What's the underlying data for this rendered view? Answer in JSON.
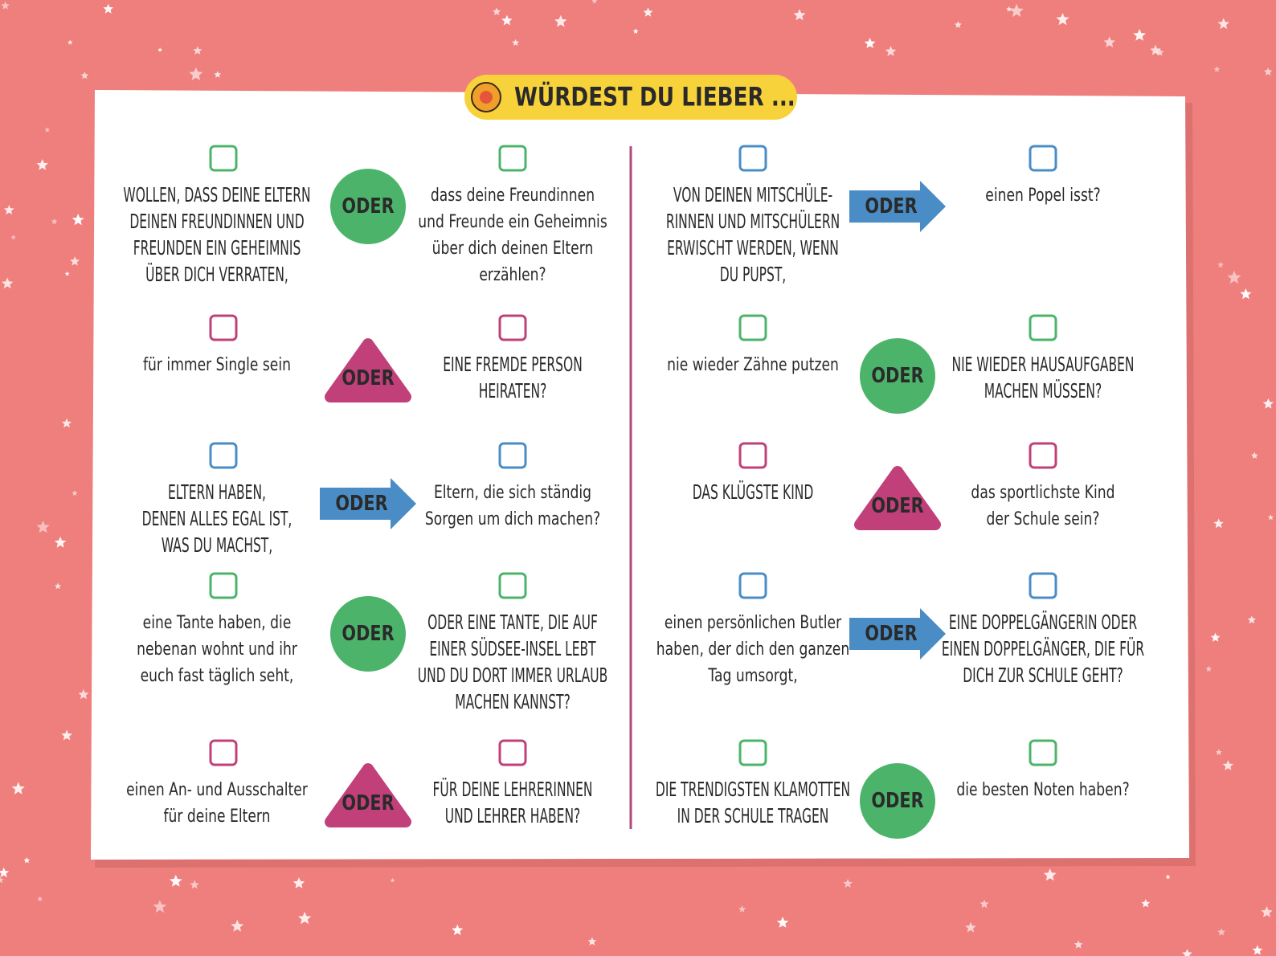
{
  "title": "WÜRDEST DU LIEBER ...",
  "columns": [
    {
      "rows": [
        {
          "left": [
            "WOLLEN, DASS DEINE ELTERN",
            "DEINEN FREUNDINNEN UND",
            "FREUNDEN EIN GEHEIMNIS",
            "ÜBER DICH VERRATEN,"
          ],
          "connector": {
            "label": "ODER",
            "shape": "circle"
          },
          "right": [
            "dass deine Freundinnen",
            "und Freunde ein Geheimnis",
            "über dich deinen Eltern",
            "erzählen?"
          ]
        },
        {
          "left": [
            "für immer Single sein"
          ],
          "connector": {
            "label": "ODER",
            "shape": "triangle"
          },
          "right": [
            "EINE FREMDE PERSON",
            "HEIRATEN?"
          ]
        },
        {
          "left": [
            "ELTERN HABEN,",
            "DENEN ALLES EGAL IST,",
            "WAS DU MACHST,"
          ],
          "connector": {
            "label": "ODER",
            "shape": "arrow"
          },
          "right": [
            "Eltern, die sich ständig",
            "Sorgen um dich machen?"
          ]
        },
        {
          "left": [
            "eine Tante haben, die",
            "nebenan wohnt und ihr",
            "euch fast täglich seht,"
          ],
          "connector": {
            "label": "ODER",
            "shape": "circle"
          },
          "right": [
            "ODER EINE TANTE, DIE AUF",
            "EINER SÜDSEE-INSEL LEBT",
            "UND DU DORT IMMER URLAUB",
            "MACHEN KANNST?"
          ]
        },
        {
          "left": [
            "einen An- und Ausschalter",
            "für deine Eltern"
          ],
          "connector": {
            "label": "ODER",
            "shape": "triangle"
          },
          "right": [
            "FÜR DEINE LEHRERINNEN",
            "UND LEHRER HABEN?"
          ]
        }
      ]
    },
    {
      "rows": [
        {
          "left": [
            "VON DEINEN MITSCHÜLE-",
            "RINNEN UND MITSCHÜLERN",
            "ERWISCHT WERDEN, WENN",
            "DU PUPST,"
          ],
          "connector": {
            "label": "ODER",
            "shape": "arrow"
          },
          "right": [
            "einen Popel isst?"
          ]
        },
        {
          "left": [
            "nie wieder Zähne putzen"
          ],
          "connector": {
            "label": "ODER",
            "shape": "circle"
          },
          "right": [
            "NIE WIEDER HAUSAUFGABEN",
            "MACHEN MÜSSEN?"
          ]
        },
        {
          "left": [
            "DAS KLÜGSTE KIND"
          ],
          "connector": {
            "label": "ODER",
            "shape": "triangle"
          },
          "right": [
            "das sportlichste Kind",
            "der Schule sein?"
          ]
        },
        {
          "left": [
            "einen persönlichen Butler",
            "haben, der dich den ganzen",
            "Tag umsorgt,"
          ],
          "connector": {
            "label": "ODER",
            "shape": "arrow"
          },
          "right": [
            "EINE DOPPELGÄNGERIN ODER",
            "EINEN DOPPELGÄNGER, DIE FÜR",
            "DICH ZUR SCHULE GEHT?"
          ]
        },
        {
          "left": [
            "DIE TRENDIGSTEN KLAMOTTEN",
            "IN DER SCHULE TRAGEN"
          ],
          "connector": {
            "label": "ODER",
            "shape": "circle"
          },
          "right": [
            "die besten Noten haben?"
          ]
        }
      ]
    }
  ]
}
